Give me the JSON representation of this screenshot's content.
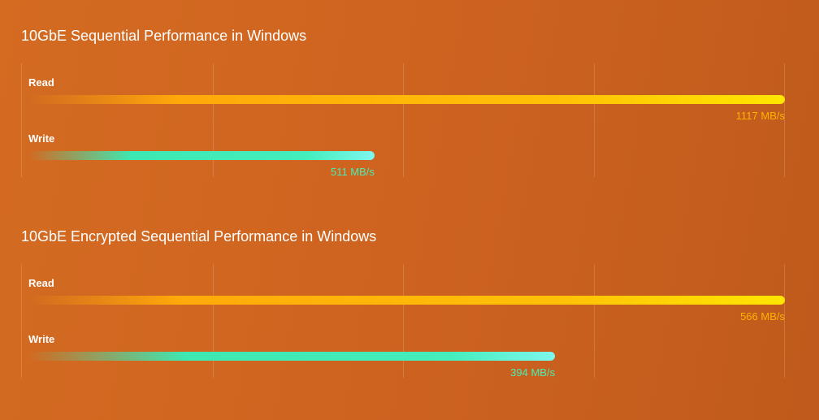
{
  "chart_data": [
    {
      "type": "bar",
      "orientation": "horizontal",
      "title": "10GbE Sequential Performance in Windows",
      "categories": [
        "Read",
        "Write"
      ],
      "values": [
        1117,
        511
      ],
      "value_labels": [
        "1117 MB/s",
        "511 MB/s"
      ],
      "unit": "MB/s",
      "xlim": [
        0,
        1117
      ],
      "grid": true,
      "colors": {
        "read": "#ffc107",
        "write": "#44edbc"
      }
    },
    {
      "type": "bar",
      "orientation": "horizontal",
      "title": "10GbE Encrypted Sequential Performance in Windows",
      "categories": [
        "Read",
        "Write"
      ],
      "values": [
        566,
        394
      ],
      "value_labels": [
        "566 MB/s",
        "394 MB/s"
      ],
      "unit": "MB/s",
      "xlim": [
        0,
        566
      ],
      "grid": true,
      "colors": {
        "read": "#ffc107",
        "write": "#44edbc"
      }
    }
  ]
}
